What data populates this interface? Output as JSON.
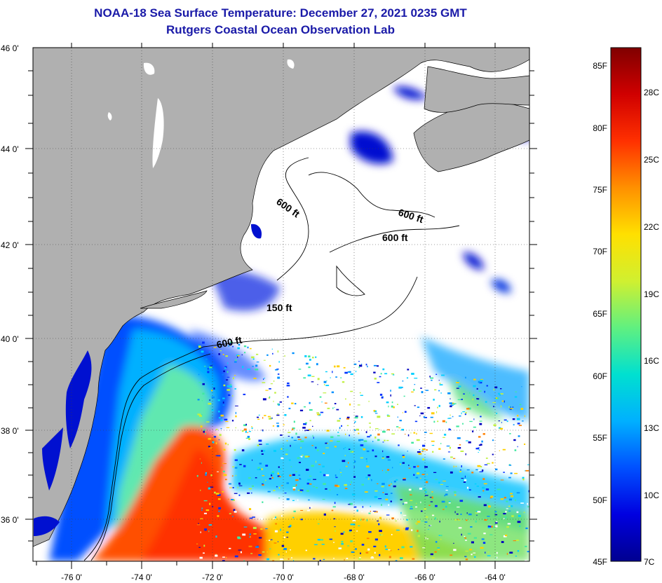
{
  "title_line1": "NOAA-18 Sea Surface Temperature:  December 27, 2021 0235 GMT",
  "title_line2": "Rutgers Coastal Ocean Observation Lab",
  "lat_labels": [
    "46 0'",
    "44 0'",
    "42 0'",
    "40 0'",
    "38 0'",
    "36 0'"
  ],
  "lon_labels": [
    "-76 0'",
    "-74 0'",
    "-72 0'",
    "-70 0'",
    "-68 0'",
    "-66 0'",
    "-64 0'"
  ],
  "contours": [
    {
      "label": "600 ft"
    },
    {
      "label": "600 ft"
    },
    {
      "label": "600 ft"
    },
    {
      "label": "150 ft"
    },
    {
      "label": "600 ft"
    }
  ],
  "colorbar": {
    "f_labels": [
      "85F",
      "80F",
      "75F",
      "70F",
      "65F",
      "60F",
      "55F",
      "50F",
      "45F"
    ],
    "c_labels": [
      "28C",
      "25C",
      "22C",
      "19C",
      "16C",
      "13C",
      "10C",
      "7C"
    ],
    "stops": [
      "#000090",
      "#0000e0",
      "#0050ff",
      "#00b0ff",
      "#00e0d0",
      "#60f080",
      "#d0f030",
      "#ffe000",
      "#ff9000",
      "#ff3000",
      "#d00000",
      "#800000"
    ]
  },
  "colors": {
    "land": "#b0b0b0",
    "cloud": "#ffffff",
    "title": "#1a1aa8"
  }
}
